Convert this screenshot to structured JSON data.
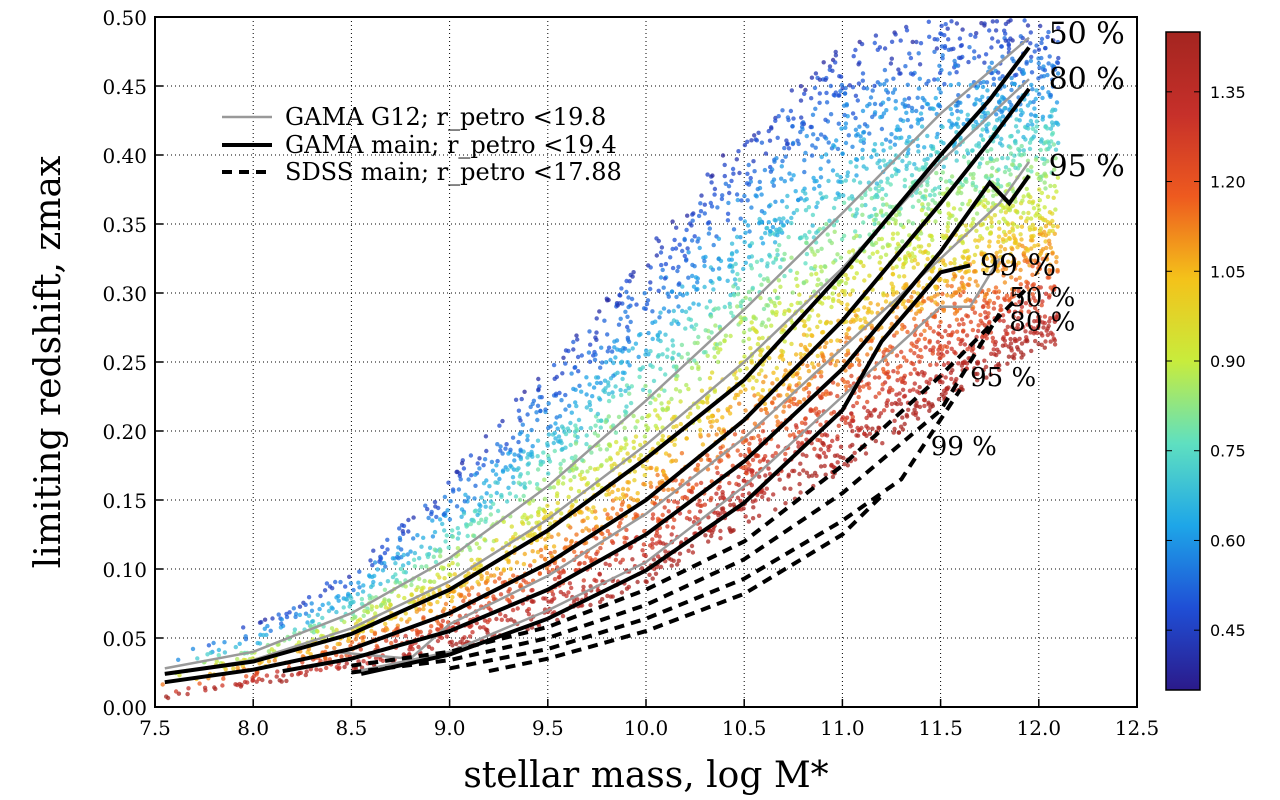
{
  "chart_data": {
    "type": "scatter",
    "xlabel": "stellar mass, log M*",
    "ylabel": "limiting redshift, zmax",
    "xlim": [
      7.5,
      12.5
    ],
    "ylim": [
      0.0,
      0.5
    ],
    "x_ticks": [
      "7.5",
      "8.0",
      "8.5",
      "9.0",
      "9.5",
      "10.0",
      "10.5",
      "11.0",
      "11.5",
      "12.0",
      "12.5"
    ],
    "y_ticks": [
      "0.00",
      "0.05",
      "0.10",
      "0.15",
      "0.20",
      "0.25",
      "0.30",
      "0.35",
      "0.40",
      "0.45",
      "0.50"
    ],
    "grid": true,
    "legend": {
      "placement": "top-left",
      "entries": [
        {
          "label": "GAMA G12; r_petro <19.8",
          "style": "gray solid"
        },
        {
          "label": "GAMA main; r_petro <19.4",
          "style": "black solid"
        },
        {
          "label": "SDSS main; r_petro <17.88",
          "style": "black dashed"
        }
      ]
    },
    "colorbar": {
      "range": [
        0.35,
        1.45
      ],
      "ticks": [
        "0.45",
        "0.60",
        "0.75",
        "0.90",
        "1.05",
        "1.20",
        "1.35"
      ],
      "colors": [
        "#2b1a8a",
        "#1f4fd6",
        "#1ea6e8",
        "#5fe0c0",
        "#c8ec3c",
        "#f4c21a",
        "#ee5a1f",
        "#c6302a",
        "#a42520"
      ]
    },
    "scatter_envelope": {
      "description": "points colored by colorbar value; envelope of the cloud in data units",
      "x": [
        7.5,
        8.0,
        8.5,
        9.0,
        9.5,
        10.0,
        10.5,
        11.0,
        11.5,
        12.0
      ],
      "z_low": [
        0.005,
        0.015,
        0.025,
        0.04,
        0.06,
        0.09,
        0.13,
        0.17,
        0.22,
        0.26
      ],
      "z_high": [
        0.04,
        0.06,
        0.1,
        0.17,
        0.25,
        0.33,
        0.42,
        0.48,
        0.5,
        0.5
      ]
    },
    "series": [
      {
        "name": "GAMA G12 50 %",
        "style": "gray",
        "x": [
          7.55,
          8.0,
          8.5,
          9.0,
          9.5,
          10.0,
          10.5,
          11.0,
          11.5,
          11.95
        ],
        "y": [
          0.028,
          0.04,
          0.068,
          0.108,
          0.16,
          0.222,
          0.288,
          0.358,
          0.43,
          0.485
        ]
      },
      {
        "name": "GAMA G12 80 %",
        "style": "gray",
        "x": [
          7.55,
          8.0,
          8.5,
          9.0,
          9.5,
          10.0,
          10.5,
          11.0,
          11.5,
          11.95
        ],
        "y": [
          0.024,
          0.034,
          0.057,
          0.091,
          0.136,
          0.19,
          0.25,
          0.318,
          0.395,
          0.455
        ]
      },
      {
        "name": "GAMA G12 95 %",
        "style": "gray",
        "x": [
          8.4,
          8.8,
          9.0,
          9.5,
          10.0,
          10.5,
          11.0,
          11.5,
          11.8,
          11.95
        ],
        "y": [
          0.04,
          0.035,
          0.06,
          0.095,
          0.14,
          0.195,
          0.26,
          0.325,
          0.365,
          0.395
        ]
      },
      {
        "name": "GAMA G12 99 %",
        "style": "gray",
        "x": [
          8.5,
          9.0,
          9.5,
          10.0,
          10.5,
          11.0,
          11.5,
          11.65,
          11.8
        ],
        "y": [
          0.025,
          0.04,
          0.07,
          0.105,
          0.16,
          0.225,
          0.29,
          0.29,
          0.325
        ]
      },
      {
        "name": "GAMA main 50 %",
        "style": "black",
        "x": [
          7.55,
          8.0,
          8.5,
          9.0,
          9.5,
          10.0,
          10.5,
          11.0,
          11.5,
          11.75,
          11.95
        ],
        "y": [
          0.024,
          0.033,
          0.053,
          0.085,
          0.128,
          0.18,
          0.237,
          0.315,
          0.4,
          0.44,
          0.478
        ]
      },
      {
        "name": "GAMA main 80 %",
        "style": "black",
        "x": [
          7.55,
          8.0,
          8.5,
          9.0,
          9.5,
          10.0,
          10.5,
          11.0,
          11.5,
          11.75,
          11.95
        ],
        "y": [
          0.018,
          0.027,
          0.042,
          0.068,
          0.104,
          0.15,
          0.208,
          0.28,
          0.365,
          0.41,
          0.448
        ]
      },
      {
        "name": "GAMA main 95 %",
        "style": "black",
        "x": [
          8.15,
          8.5,
          9.0,
          9.5,
          10.0,
          10.5,
          11.0,
          11.5,
          11.75,
          11.85,
          11.95
        ],
        "y": [
          0.026,
          0.035,
          0.055,
          0.085,
          0.125,
          0.178,
          0.245,
          0.33,
          0.38,
          0.365,
          0.385
        ]
      },
      {
        "name": "GAMA main 99 %",
        "style": "black",
        "x": [
          8.55,
          9.0,
          9.5,
          10.0,
          10.5,
          11.0,
          11.2,
          11.5,
          11.65
        ],
        "y": [
          0.024,
          0.038,
          0.064,
          0.099,
          0.148,
          0.215,
          0.265,
          0.315,
          0.32
        ]
      },
      {
        "name": "SDSS main 50 %",
        "style": "dashed",
        "x": [
          8.5,
          9.0,
          9.5,
          10.0,
          10.5,
          11.0,
          11.5,
          11.95
        ],
        "y": [
          0.03,
          0.04,
          0.058,
          0.085,
          0.12,
          0.175,
          0.24,
          0.305
        ]
      },
      {
        "name": "SDSS main 80 %",
        "style": "dashed",
        "x": [
          8.5,
          9.0,
          9.5,
          10.0,
          10.5,
          11.0,
          11.5,
          11.8
        ],
        "y": [
          0.025,
          0.034,
          0.05,
          0.074,
          0.107,
          0.155,
          0.215,
          0.285
        ]
      },
      {
        "name": "SDSS main 95 %",
        "style": "dashed",
        "x": [
          9.0,
          9.5,
          10.0,
          10.5,
          11.0,
          11.3,
          11.6
        ],
        "y": [
          0.028,
          0.042,
          0.064,
          0.093,
          0.135,
          0.165,
          0.23
        ]
      },
      {
        "name": "SDSS main 99 %",
        "style": "dashed",
        "x": [
          9.2,
          9.5,
          10.0,
          10.5,
          11.0,
          11.2
        ],
        "y": [
          0.026,
          0.035,
          0.055,
          0.082,
          0.125,
          0.153
        ]
      }
    ],
    "annotations": [
      {
        "text": "50 %",
        "x": 12.05,
        "y": 0.488,
        "size": "large"
      },
      {
        "text": "80 %",
        "x": 12.05,
        "y": 0.455,
        "size": "large"
      },
      {
        "text": "95 %",
        "x": 12.05,
        "y": 0.392,
        "size": "large"
      },
      {
        "text": "99 %",
        "x": 11.7,
        "y": 0.32,
        "size": "large"
      },
      {
        "text": "50 %",
        "x": 11.85,
        "y": 0.298,
        "size": "small"
      },
      {
        "text": "80 %",
        "x": 11.85,
        "y": 0.28,
        "size": "small"
      },
      {
        "text": "95 %",
        "x": 11.65,
        "y": 0.24,
        "size": "small"
      },
      {
        "text": "99 %",
        "x": 11.45,
        "y": 0.19,
        "size": "small"
      }
    ]
  }
}
